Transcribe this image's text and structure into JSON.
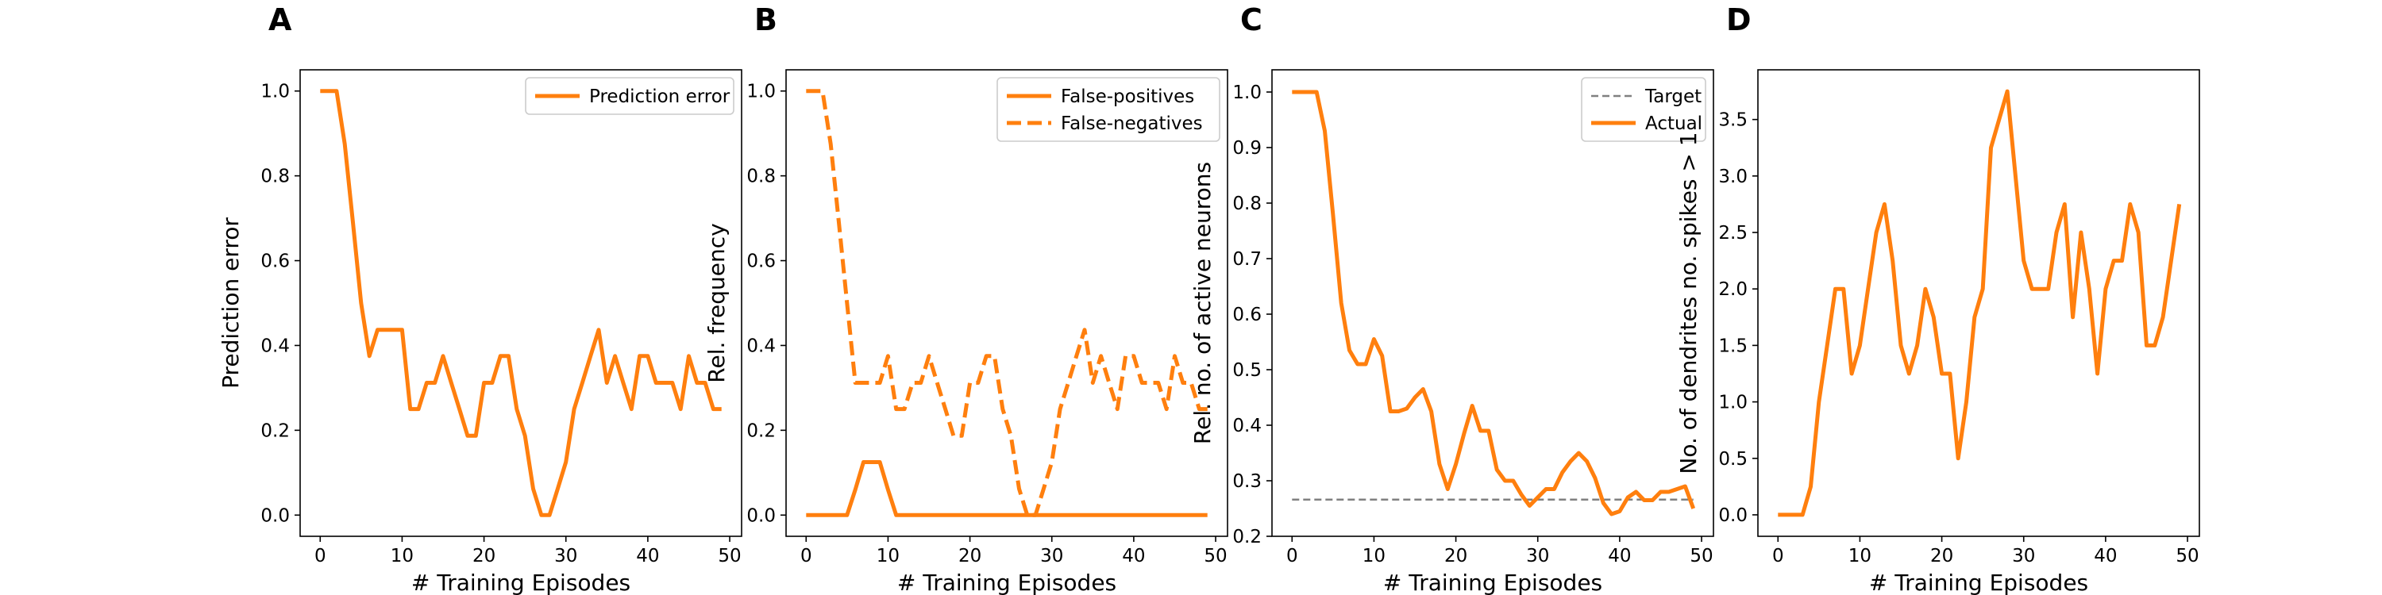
{
  "colors": {
    "series": "#ff7f0e",
    "target": "#808080",
    "axes": "#000000",
    "legend_border": "#cccccc"
  },
  "chart_data": [
    {
      "panel": "A",
      "type": "line",
      "xlabel": "# Training Episodes",
      "ylabel": "Prediction error",
      "xlim": [
        -2.45,
        51.45
      ],
      "ylim": [
        -0.05,
        1.05
      ],
      "xticks": [
        0,
        10,
        20,
        30,
        40,
        50
      ],
      "yticks": [
        0.0,
        0.2,
        0.4,
        0.6,
        0.8,
        1.0
      ],
      "ytick_labels": [
        "0.0",
        "0.2",
        "0.4",
        "0.6",
        "0.8",
        "1.0"
      ],
      "grid": false,
      "legend_position": "top-right",
      "series": [
        {
          "name": "Prediction error",
          "style": "solid",
          "x": [
            0,
            1,
            2,
            3,
            4,
            5,
            6,
            7,
            8,
            9,
            10,
            11,
            12,
            13,
            14,
            15,
            16,
            17,
            18,
            19,
            20,
            21,
            22,
            23,
            24,
            25,
            26,
            27,
            28,
            29,
            30,
            31,
            32,
            33,
            34,
            35,
            36,
            37,
            38,
            39,
            40,
            41,
            42,
            43,
            44,
            45,
            46,
            47,
            48,
            49
          ],
          "values": [
            1.0,
            1.0,
            1.0,
            0.875,
            0.69,
            0.5,
            0.375,
            0.437,
            0.437,
            0.437,
            0.437,
            0.25,
            0.25,
            0.312,
            0.312,
            0.375,
            0.312,
            0.25,
            0.187,
            0.187,
            0.312,
            0.312,
            0.375,
            0.375,
            0.25,
            0.187,
            0.062,
            0.0,
            0.0,
            0.062,
            0.125,
            0.25,
            0.312,
            0.375,
            0.437,
            0.312,
            0.375,
            0.312,
            0.25,
            0.375,
            0.375,
            0.312,
            0.312,
            0.312,
            0.25,
            0.375,
            0.312,
            0.312,
            0.25,
            0.25
          ]
        }
      ]
    },
    {
      "panel": "B",
      "type": "line",
      "xlabel": "# Training Episodes",
      "ylabel": "Rel. frequency",
      "xlim": [
        -2.45,
        51.45
      ],
      "ylim": [
        -0.05,
        1.05
      ],
      "xticks": [
        0,
        10,
        20,
        30,
        40,
        50
      ],
      "yticks": [
        0.0,
        0.2,
        0.4,
        0.6,
        0.8,
        1.0
      ],
      "ytick_labels": [
        "0.0",
        "0.2",
        "0.4",
        "0.6",
        "0.8",
        "1.0"
      ],
      "grid": false,
      "legend_position": "top-right",
      "series": [
        {
          "name": "False-positives",
          "style": "solid",
          "x": [
            0,
            1,
            2,
            3,
            4,
            5,
            6,
            7,
            8,
            9,
            10,
            11,
            12,
            13,
            14,
            15,
            16,
            17,
            18,
            19,
            20,
            21,
            22,
            23,
            24,
            25,
            26,
            27,
            28,
            29,
            30,
            31,
            32,
            33,
            34,
            35,
            36,
            37,
            38,
            39,
            40,
            41,
            42,
            43,
            44,
            45,
            46,
            47,
            48,
            49
          ],
          "values": [
            0,
            0,
            0,
            0,
            0,
            0,
            0.06,
            0.125,
            0.125,
            0.125,
            0.06,
            0,
            0,
            0,
            0,
            0,
            0,
            0,
            0,
            0,
            0,
            0,
            0,
            0,
            0,
            0,
            0,
            0,
            0,
            0,
            0,
            0,
            0,
            0,
            0,
            0,
            0,
            0,
            0,
            0,
            0,
            0,
            0,
            0,
            0,
            0,
            0,
            0,
            0,
            0
          ]
        },
        {
          "name": "False-negatives",
          "style": "dashed",
          "x": [
            0,
            1,
            2,
            3,
            4,
            5,
            6,
            7,
            8,
            9,
            10,
            11,
            12,
            13,
            14,
            15,
            16,
            17,
            18,
            19,
            20,
            21,
            22,
            23,
            24,
            25,
            26,
            27,
            28,
            29,
            30,
            31,
            32,
            33,
            34,
            35,
            36,
            37,
            38,
            39,
            40,
            41,
            42,
            43,
            44,
            45,
            46,
            47,
            48,
            49
          ],
          "values": [
            1.0,
            1.0,
            1.0,
            0.875,
            0.69,
            0.5,
            0.312,
            0.312,
            0.312,
            0.312,
            0.375,
            0.25,
            0.25,
            0.312,
            0.312,
            0.375,
            0.312,
            0.25,
            0.187,
            0.187,
            0.312,
            0.312,
            0.375,
            0.375,
            0.25,
            0.187,
            0.062,
            0.0,
            0.0,
            0.062,
            0.125,
            0.25,
            0.312,
            0.375,
            0.437,
            0.312,
            0.375,
            0.312,
            0.25,
            0.375,
            0.375,
            0.312,
            0.312,
            0.312,
            0.25,
            0.375,
            0.312,
            0.312,
            0.25,
            0.25
          ]
        }
      ]
    },
    {
      "panel": "C",
      "type": "line",
      "xlabel": "# Training Episodes",
      "ylabel": "Rel. no. of active neurons",
      "xlim": [
        -2.45,
        51.45
      ],
      "ylim": [
        0.2,
        1.04
      ],
      "xticks": [
        0,
        10,
        20,
        30,
        40,
        50
      ],
      "yticks": [
        0.2,
        0.3,
        0.4,
        0.5,
        0.6,
        0.7,
        0.8,
        0.9,
        1.0
      ],
      "ytick_labels": [
        "0.2",
        "0.3",
        "0.4",
        "0.5",
        "0.6",
        "0.7",
        "0.8",
        "0.9",
        "1.0"
      ],
      "grid": false,
      "legend_position": "top-right",
      "series": [
        {
          "name": "Target",
          "style": "target",
          "x": [
            0,
            49
          ],
          "values": [
            0.266,
            0.266
          ]
        },
        {
          "name": "Actual",
          "style": "solid",
          "x": [
            0,
            1,
            2,
            3,
            4,
            5,
            6,
            7,
            8,
            9,
            10,
            11,
            12,
            13,
            14,
            15,
            16,
            17,
            18,
            19,
            20,
            21,
            22,
            23,
            24,
            25,
            26,
            27,
            28,
            29,
            30,
            31,
            32,
            33,
            34,
            35,
            36,
            37,
            38,
            39,
            40,
            41,
            42,
            43,
            44,
            45,
            46,
            47,
            48,
            49
          ],
          "values": [
            1.0,
            1.0,
            1.0,
            1.0,
            0.93,
            0.78,
            0.62,
            0.535,
            0.51,
            0.51,
            0.555,
            0.525,
            0.425,
            0.425,
            0.43,
            0.45,
            0.465,
            0.425,
            0.33,
            0.285,
            0.33,
            0.385,
            0.435,
            0.39,
            0.39,
            0.32,
            0.3,
            0.3,
            0.275,
            0.255,
            0.27,
            0.285,
            0.285,
            0.315,
            0.335,
            0.35,
            0.335,
            0.305,
            0.26,
            0.24,
            0.245,
            0.27,
            0.28,
            0.265,
            0.265,
            0.28,
            0.28,
            0.285,
            0.29,
            0.25
          ]
        }
      ]
    },
    {
      "panel": "D",
      "type": "line",
      "xlabel": "# Training Episodes",
      "ylabel": "No. of dendrites no. spikes > 1",
      "xlim": [
        -2.45,
        51.45
      ],
      "ylim": [
        -0.19,
        3.94
      ],
      "xticks": [
        0,
        10,
        20,
        30,
        40,
        50
      ],
      "yticks": [
        0.0,
        0.5,
        1.0,
        1.5,
        2.0,
        2.5,
        3.0,
        3.5
      ],
      "ytick_labels": [
        "0.0",
        "0.5",
        "1.0",
        "1.5",
        "2.0",
        "2.5",
        "3.0",
        "3.5"
      ],
      "grid": false,
      "legend_position": "none",
      "series": [
        {
          "name": "",
          "style": "solid",
          "x": [
            0,
            1,
            2,
            3,
            4,
            5,
            6,
            7,
            8,
            9,
            10,
            11,
            12,
            13,
            14,
            15,
            16,
            17,
            18,
            19,
            20,
            21,
            22,
            23,
            24,
            25,
            26,
            27,
            28,
            29,
            30,
            31,
            32,
            33,
            34,
            35,
            36,
            37,
            38,
            39,
            40,
            41,
            42,
            43,
            44,
            45,
            46,
            47,
            48,
            49
          ],
          "values": [
            0,
            0,
            0,
            0,
            0.25,
            1.0,
            1.5,
            2.0,
            2.0,
            1.25,
            1.5,
            2.0,
            2.5,
            2.75,
            2.25,
            1.5,
            1.25,
            1.5,
            2.0,
            1.75,
            1.25,
            1.25,
            0.5,
            1.0,
            1.75,
            2.0,
            3.25,
            3.5,
            3.75,
            3.0,
            2.25,
            2.0,
            2.0,
            2.0,
            2.5,
            2.75,
            1.75,
            2.5,
            2.0,
            1.25,
            2.0,
            2.25,
            2.25,
            2.75,
            2.5,
            1.5,
            1.5,
            1.75,
            2.25,
            2.75
          ]
        }
      ]
    }
  ]
}
